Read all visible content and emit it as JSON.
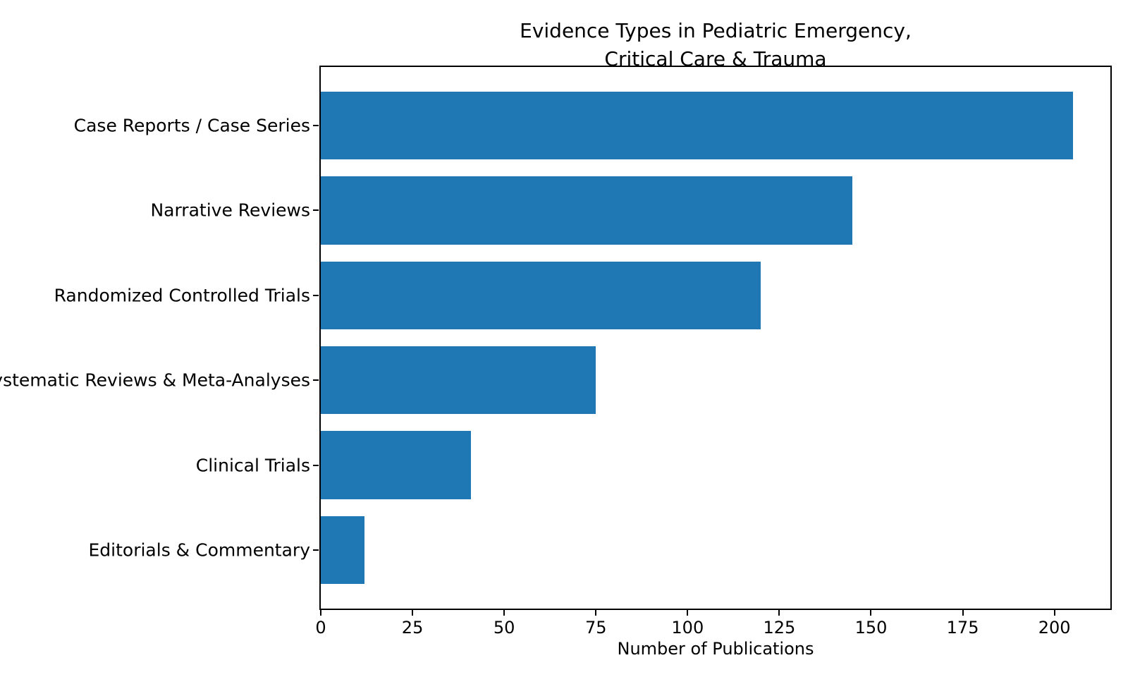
{
  "chart_data": {
    "type": "bar",
    "orientation": "horizontal",
    "title": "Evidence Types in Pediatric Emergency,\nCritical Care & Trauma",
    "categories": [
      "Case Reports / Case Series",
      "Narrative Reviews",
      "Randomized Controlled Trials",
      "Systematic Reviews & Meta-Analyses",
      "Clinical Trials",
      "Editorials & Commentary"
    ],
    "values": [
      205,
      145,
      120,
      75,
      41,
      12
    ],
    "xlabel": "Number of Publications",
    "xticks": [
      0,
      25,
      50,
      75,
      100,
      125,
      150,
      175,
      200
    ],
    "xlim": [
      0,
      215.25
    ],
    "bar_color": "#1f77b4",
    "grid": false,
    "legend": null,
    "bar_height_fraction": 0.8
  }
}
